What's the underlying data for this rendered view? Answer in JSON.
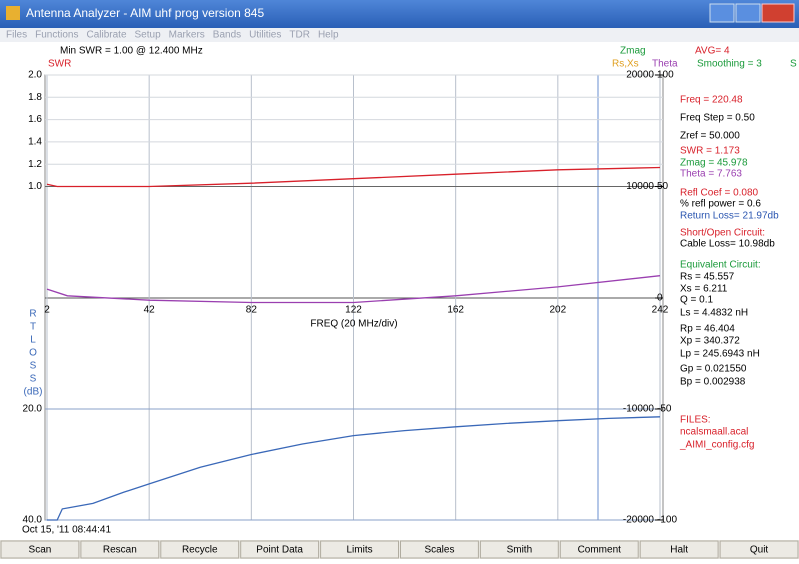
{
  "window": {
    "title": "Antenna Analyzer - AIM uhf  prog version 845"
  },
  "menu": [
    "Files",
    "Functions",
    "Calibrate",
    "Setup",
    "Markers",
    "Bands",
    "Utilities",
    "TDR",
    "Help"
  ],
  "header": {
    "min_swr": "Min SWR =   1.00 @  12.400 MHz",
    "swr": "SWR",
    "zmag": "Zmag",
    "rsxs": "Rs,Xs",
    "theta": "Theta",
    "avg": "AVG=  4",
    "smoothing": "Smoothing = 3",
    "s": "S"
  },
  "plot": {
    "xlim": [
      2,
      242
    ],
    "xticks": [
      2,
      42,
      82,
      122,
      162,
      202,
      242
    ],
    "x_label": "FREQ (20 MHz/div)",
    "swr_lim": [
      0,
      2
    ],
    "swr_ticks": [
      {
        "value": 2,
        "label": "2.0"
      },
      {
        "value": 1.8,
        "label": "1.8"
      },
      {
        "value": 1.6,
        "label": "1.6"
      },
      {
        "value": 1.4,
        "label": "1.4"
      },
      {
        "value": 1.2,
        "label": "1.2"
      },
      {
        "value": 1,
        "label": "1.0"
      }
    ],
    "theta_lim": [
      0,
      100
    ],
    "theta_ticks": [
      0,
      50,
      100
    ],
    "zmag_lim": [
      0,
      20000
    ],
    "zmag_ticks": [
      10000,
      20000
    ],
    "loss_lim": [
      0,
      40
    ],
    "loss_ticks": [
      {
        "value": 20,
        "label": "20.0"
      },
      {
        "value": 40,
        "label": "40.0"
      }
    ],
    "loss_label": [
      "R",
      "T",
      "L",
      "O",
      "S",
      "S",
      "(dB)"
    ],
    "phase_lim": [
      0,
      -100
    ],
    "phase_ticks": [
      -50,
      -100
    ],
    "zneg_lim": [
      0,
      -20000
    ],
    "zneg_ticks": [
      -10000,
      -20000
    ],
    "series": [
      {
        "name": "SWR",
        "axis": "swr",
        "color": "#d8202a",
        "x": [
          2,
          6,
          20,
          42,
          82,
          122,
          162,
          202,
          242
        ],
        "values": [
          1.02,
          1.0,
          1.0,
          1.0,
          1.03,
          1.07,
          1.11,
          1.15,
          1.17
        ]
      },
      {
        "name": "Theta",
        "axis": "theta",
        "color": "#9a3fb0",
        "x": [
          2,
          10,
          42,
          82,
          122,
          162,
          202,
          242
        ],
        "values": [
          4,
          1,
          -1,
          -2,
          -2,
          1,
          5,
          10
        ]
      },
      {
        "name": "Return Loss",
        "axis": "loss",
        "color": "#3a68b8",
        "x": [
          2,
          6,
          8,
          20,
          32,
          42,
          62,
          82,
          102,
          122,
          142,
          162,
          182,
          202,
          222,
          242
        ],
        "values": [
          40,
          40,
          38,
          37,
          35,
          33.5,
          30.5,
          28.2,
          26.3,
          24.8,
          23.9,
          23.2,
          22.6,
          22.1,
          21.7,
          21.4
        ]
      }
    ],
    "timestamp": "Oct 15, '11  08:44:41"
  },
  "readouts": [
    {
      "text": "Freq = 220.48",
      "color": "#d8202a"
    },
    {
      "text": "Freq Step = 0.50",
      "color": "#000"
    },
    {
      "text": "Zref =   50.000",
      "color": "#000"
    },
    {
      "text": "SWR =    1.173",
      "color": "#d8202a"
    },
    {
      "text": "Zmag =  45.978",
      "color": "#1a9a3a"
    },
    {
      "text": "Theta =   7.763",
      "color": "#9a3fb0"
    },
    {
      "text": "Refl Coef   = 0.080",
      "color": "#d8202a"
    },
    {
      "text": "% refl power =  0.6",
      "color": "#000"
    },
    {
      "text": "Return Loss= 21.97db",
      "color": "#2a55b0"
    },
    {
      "text": "Short/Open Circuit:",
      "color": "#d8202a"
    },
    {
      "text": "Cable Loss= 10.98db",
      "color": "#000"
    },
    {
      "text": "Equivalent Circuit:",
      "color": "#1a9a3a"
    },
    {
      "text": "Rs =  45.557",
      "color": "#000"
    },
    {
      "text": "Xs =    6.211",
      "color": "#000"
    },
    {
      "text": "Q =  0.1",
      "color": "#000"
    },
    {
      "text": "Ls =   4.4832  nH",
      "color": "#000"
    },
    {
      "text": "Rp =  46.404",
      "color": "#000"
    },
    {
      "text": "Xp =  340.372",
      "color": "#000"
    },
    {
      "text": "Lp =  245.6943  nH",
      "color": "#000"
    },
    {
      "text": "Gp = 0.021550",
      "color": "#000"
    },
    {
      "text": "Bp = 0.002938",
      "color": "#000"
    },
    {
      "text": "FILES:",
      "color": "#d8202a"
    },
    {
      "text": "ncalsmaall.acal",
      "color": "#d8202a"
    },
    {
      "text": "_AIMI_config.cfg",
      "color": "#d8202a"
    }
  ],
  "buttons": [
    "Scan",
    "Rescan",
    "Recycle",
    "Point Data",
    "Limits",
    "Scales",
    "Smith",
    "Comment",
    "Halt",
    "Quit"
  ]
}
